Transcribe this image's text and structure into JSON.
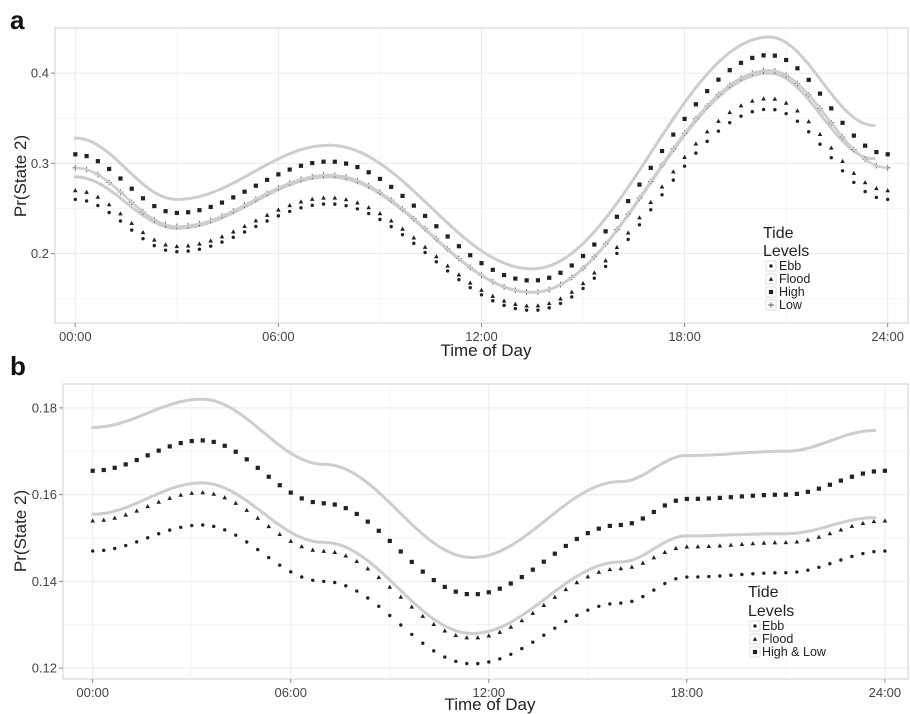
{
  "chart_data": [
    {
      "panel_label": "a",
      "type": "line",
      "xlabel": "Time of Day",
      "ylabel": "Pr(State 2)",
      "xlim": [
        -0.6,
        24.6
      ],
      "ylim": [
        0.123,
        0.45
      ],
      "x_ticks": [
        0,
        6,
        12,
        18,
        24
      ],
      "x_tick_labels": [
        "00:00",
        "06:00",
        "12:00",
        "18:00",
        "24:00"
      ],
      "y_ticks": [
        0.2,
        0.3,
        0.4
      ],
      "y_tick_labels": [
        "0.2",
        "0.3",
        "0.4"
      ],
      "grid": true,
      "legend": {
        "title_lines": [
          "Tide",
          "Levels"
        ],
        "position": "right"
      },
      "series": [
        {
          "name": "Ebb",
          "marker": "dot",
          "x": [
            0,
            3,
            7.5,
            13.5,
            20.5,
            24
          ],
          "y": [
            0.26,
            0.202,
            0.255,
            0.137,
            0.36,
            0.26
          ]
        },
        {
          "name": "Flood",
          "marker": "triangle",
          "x": [
            0,
            3,
            7.5,
            13.5,
            20.5,
            24
          ],
          "y": [
            0.27,
            0.208,
            0.262,
            0.142,
            0.372,
            0.27
          ]
        },
        {
          "name": "High",
          "marker": "square",
          "x": [
            0,
            3,
            7.5,
            13.5,
            20.5,
            24
          ],
          "y": [
            0.31,
            0.245,
            0.302,
            0.17,
            0.42,
            0.31
          ]
        },
        {
          "name": "Low",
          "marker": "plus",
          "x": [
            0,
            3,
            7.5,
            13.5,
            20.5,
            24
          ],
          "y": [
            0.295,
            0.23,
            0.287,
            0.157,
            0.403,
            0.295
          ]
        }
      ],
      "bands": [
        {
          "x": [
            0,
            3,
            7.5,
            13.5,
            20.5,
            23.6
          ],
          "y": [
            0.328,
            0.26,
            0.32,
            0.183,
            0.44,
            0.342
          ]
        },
        {
          "x": [
            0,
            3,
            7.5,
            13.5,
            20.5,
            23.6
          ],
          "y": [
            0.285,
            0.228,
            0.285,
            0.157,
            0.4,
            0.305
          ]
        }
      ]
    },
    {
      "panel_label": "b",
      "type": "line",
      "xlabel": "Time of Day",
      "ylabel": "Pr(State 2)",
      "xlim": [
        -0.9,
        24.7
      ],
      "ylim": [
        0.1175,
        0.1855
      ],
      "x_ticks": [
        0,
        6,
        12,
        18,
        24
      ],
      "x_tick_labels": [
        "00:00",
        "06:00",
        "12:00",
        "18:00",
        "24:00"
      ],
      "y_ticks": [
        0.12,
        0.14,
        0.16,
        0.18
      ],
      "y_tick_labels": [
        "0.12",
        "0.14",
        "0.16",
        "0.18"
      ],
      "grid": true,
      "legend": {
        "title_lines": [
          "Tide",
          "Levels"
        ],
        "position": "right"
      },
      "series": [
        {
          "name": "Ebb",
          "marker": "dot",
          "x": [
            0,
            3.3,
            7,
            11.5,
            16,
            18,
            21,
            24
          ],
          "y": [
            0.147,
            0.153,
            0.14,
            0.121,
            0.135,
            0.141,
            0.142,
            0.147
          ]
        },
        {
          "name": "Flood",
          "marker": "triangle",
          "x": [
            0,
            3.3,
            7,
            11.5,
            16,
            18,
            21,
            24
          ],
          "y": [
            0.154,
            0.1605,
            0.147,
            0.127,
            0.143,
            0.148,
            0.149,
            0.154
          ]
        },
        {
          "name": "High & Low",
          "marker": "square",
          "x": [
            0,
            3.3,
            7,
            11.5,
            16,
            18,
            21,
            24
          ],
          "y": [
            0.1655,
            0.1725,
            0.158,
            0.137,
            0.153,
            0.159,
            0.16,
            0.1655
          ]
        }
      ],
      "bands": [
        {
          "x": [
            0,
            3.3,
            7,
            11.5,
            16,
            18,
            21,
            23.7
          ],
          "y": [
            0.1755,
            0.182,
            0.167,
            0.1455,
            0.163,
            0.169,
            0.17,
            0.1748
          ]
        },
        {
          "x": [
            0,
            3.3,
            7,
            11.5,
            16,
            18,
            21,
            23.7
          ],
          "y": [
            0.1555,
            0.1627,
            0.149,
            0.128,
            0.1445,
            0.1505,
            0.151,
            0.1547
          ]
        }
      ]
    }
  ]
}
